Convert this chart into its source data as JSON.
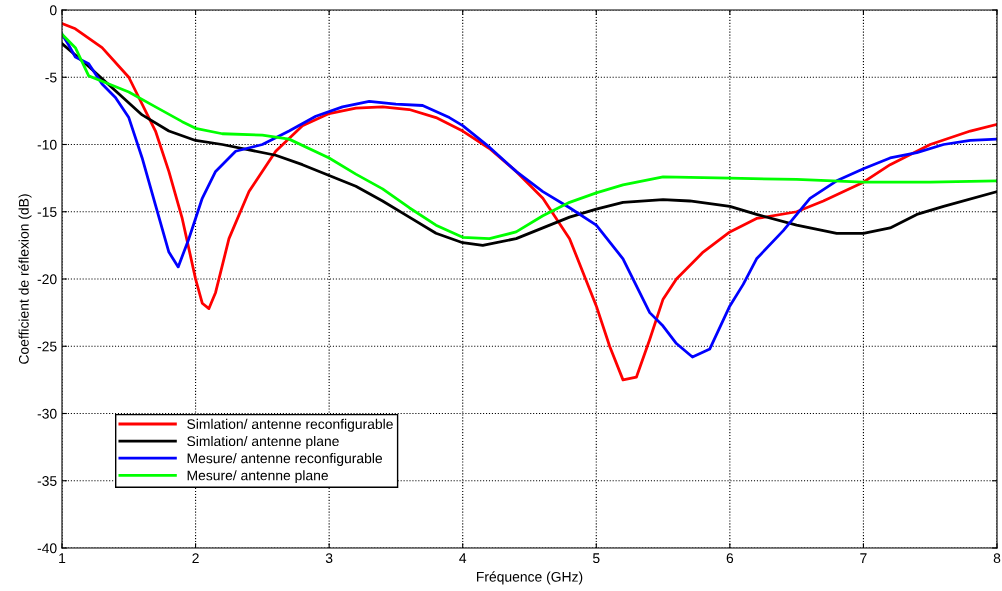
{
  "chart_data": {
    "type": "line",
    "xlabel": "Fréquence (GHz)",
    "ylabel": "Coefficient de réflexion (dB)",
    "xlim": [
      1,
      8
    ],
    "ylim": [
      -40,
      0
    ],
    "xticks": [
      1,
      2,
      3,
      4,
      5,
      6,
      7,
      8
    ],
    "yticks": [
      -40,
      -35,
      -30,
      -25,
      -20,
      -15,
      -10,
      -5,
      0
    ],
    "grid": true,
    "legend": "bottom left",
    "line_style": "solid",
    "marker": "none",
    "series": [
      {
        "name": "Simlation/ antenne reconfigurable",
        "color": "#ff0000",
        "x": [
          1,
          1.1,
          1.3,
          1.5,
          1.7,
          1.8,
          1.9,
          2.0,
          2.05,
          2.1,
          2.15,
          2.25,
          2.4,
          2.6,
          2.8,
          3.0,
          3.2,
          3.4,
          3.6,
          3.8,
          4.0,
          4.2,
          4.4,
          4.6,
          4.8,
          5.0,
          5.1,
          5.2,
          5.3,
          5.4,
          5.5,
          5.6,
          5.8,
          6.0,
          6.2,
          6.5,
          6.7,
          7.0,
          7.2,
          7.5,
          7.8,
          8
        ],
        "values": [
          -1,
          -1.4,
          -2.8,
          -5,
          -9,
          -12,
          -15.5,
          -20,
          -21.8,
          -22.2,
          -21,
          -17,
          -13.5,
          -10.5,
          -8.6,
          -7.7,
          -7.3,
          -7.2,
          -7.4,
          -8,
          -9,
          -10.3,
          -12,
          -14,
          -17,
          -22,
          -25,
          -27.5,
          -27.3,
          -24.5,
          -21.5,
          -20,
          -18,
          -16.5,
          -15.5,
          -15,
          -14.2,
          -12.8,
          -11.5,
          -10,
          -9,
          -8.5
        ]
      },
      {
        "name": "Simlation/ antenne plane",
        "color": "#000000",
        "x": [
          1,
          1.2,
          1.4,
          1.6,
          1.8,
          2.0,
          2.2,
          2.4,
          2.6,
          2.8,
          3.0,
          3.2,
          3.4,
          3.6,
          3.8,
          4.0,
          4.15,
          4.4,
          4.6,
          4.8,
          5.0,
          5.2,
          5.5,
          5.7,
          6.0,
          6.2,
          6.5,
          6.8,
          7.0,
          7.2,
          7.4,
          7.6,
          8
        ],
        "values": [
          -2.5,
          -4.2,
          -6,
          -7.8,
          -9,
          -9.7,
          -10,
          -10.4,
          -10.8,
          -11.5,
          -12.3,
          -13.1,
          -14.2,
          -15.4,
          -16.6,
          -17.3,
          -17.5,
          -17,
          -16.2,
          -15.4,
          -14.8,
          -14.3,
          -14.1,
          -14.2,
          -14.6,
          -15.2,
          -16,
          -16.6,
          -16.6,
          -16.2,
          -15.2,
          -14.6,
          -13.5
        ]
      },
      {
        "name": "Mesure/ antenne reconfigurable",
        "color": "#0000ff",
        "x": [
          1,
          1.05,
          1.1,
          1.2,
          1.3,
          1.4,
          1.5,
          1.6,
          1.7,
          1.8,
          1.87,
          1.95,
          2.0,
          2.05,
          2.15,
          2.3,
          2.5,
          2.7,
          2.9,
          3.1,
          3.3,
          3.5,
          3.7,
          3.9,
          4.0,
          4.2,
          4.4,
          4.6,
          4.8,
          5.0,
          5.2,
          5.4,
          5.5,
          5.6,
          5.72,
          5.85,
          6.0,
          6.1,
          6.2,
          6.4,
          6.6,
          6.8,
          7.0,
          7.2,
          7.4,
          7.6,
          7.8,
          8
        ],
        "values": [
          -1.8,
          -2.6,
          -3.5,
          -4,
          -5.5,
          -6.5,
          -8,
          -11,
          -14.5,
          -18,
          -19.1,
          -17,
          -15.5,
          -14,
          -12,
          -10.5,
          -10,
          -9,
          -7.9,
          -7.2,
          -6.8,
          -7,
          -7.1,
          -8,
          -8.6,
          -10.2,
          -12,
          -13.5,
          -14.7,
          -16,
          -18.5,
          -22.5,
          -23.5,
          -24.8,
          -25.8,
          -25.2,
          -22,
          -20.4,
          -18.5,
          -16.4,
          -14,
          -12.7,
          -11.8,
          -11,
          -10.6,
          -10,
          -9.7,
          -9.6
        ]
      },
      {
        "name": "Mesure/ antenne plane",
        "color": "#00ff00",
        "x": [
          1,
          1.1,
          1.2,
          1.3,
          1.5,
          1.7,
          1.9,
          2.0,
          2.2,
          2.5,
          2.7,
          3.0,
          3.2,
          3.4,
          3.6,
          3.8,
          4.0,
          4.2,
          4.4,
          4.6,
          4.8,
          5.0,
          5.2,
          5.5,
          6.0,
          6.5,
          7.0,
          7.5,
          8
        ],
        "values": [
          -1.8,
          -2.8,
          -4.9,
          -5.3,
          -6.1,
          -7.2,
          -8.3,
          -8.8,
          -9.2,
          -9.3,
          -9.6,
          -11,
          -12.2,
          -13.3,
          -14.7,
          -16,
          -16.9,
          -17,
          -16.5,
          -15.3,
          -14.3,
          -13.6,
          -13,
          -12.4,
          -12.5,
          -12.6,
          -12.8,
          -12.8,
          -12.7
        ]
      }
    ]
  }
}
